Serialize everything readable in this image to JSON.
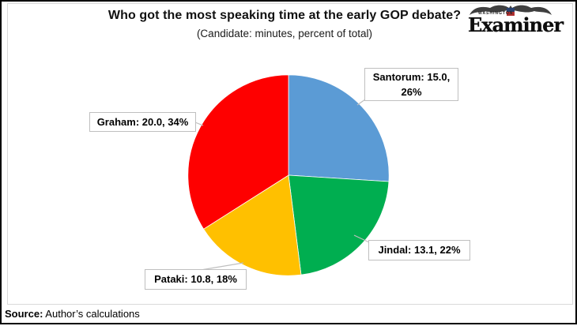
{
  "header": {
    "title": "Who got the most speaking time at the early GOP debate?",
    "subtitle": "(Candidate: minutes, percent of total)"
  },
  "logo": {
    "top_text": "WASHINGTON",
    "name": "Examiner"
  },
  "footer": {
    "source_label": "Source:",
    "source_text": " Author’s calculations"
  },
  "labels": {
    "santorum": {
      "line1": "Santorum: 15.0,",
      "line2": "26%"
    },
    "graham": {
      "text": "Graham: 20.0, 34%"
    },
    "jindal": {
      "text": "Jindal: 13.1, 22%"
    },
    "pataki": {
      "text": "Pataki: 10.8, 18%"
    }
  },
  "chart_data": {
    "type": "pie",
    "title": "Who got the most speaking time at the early GOP debate?",
    "subtitle": "(Candidate: minutes, percent of total)",
    "units": "minutes",
    "start_angle_deg": 0,
    "direction": "clockwise",
    "legend": "none (callout data labels)",
    "categories": [
      "Santorum",
      "Jindal",
      "Pataki",
      "Graham"
    ],
    "slices": [
      {
        "candidate": "Santorum",
        "minutes": 15.0,
        "percent": 26,
        "color": "#5B9BD5",
        "label": "Santorum: 15.0, 26%"
      },
      {
        "candidate": "Jindal",
        "minutes": 13.1,
        "percent": 22,
        "color": "#00AE50",
        "label": "Jindal: 13.1, 22%"
      },
      {
        "candidate": "Pataki",
        "minutes": 10.8,
        "percent": 18,
        "color": "#FFC000",
        "label": "Pataki: 10.8, 18%"
      },
      {
        "candidate": "Graham",
        "minutes": 20.0,
        "percent": 34,
        "color": "#FE0000",
        "label": "Graham: 20.0, 34%"
      }
    ],
    "source": "Source: Author’s calculations"
  }
}
